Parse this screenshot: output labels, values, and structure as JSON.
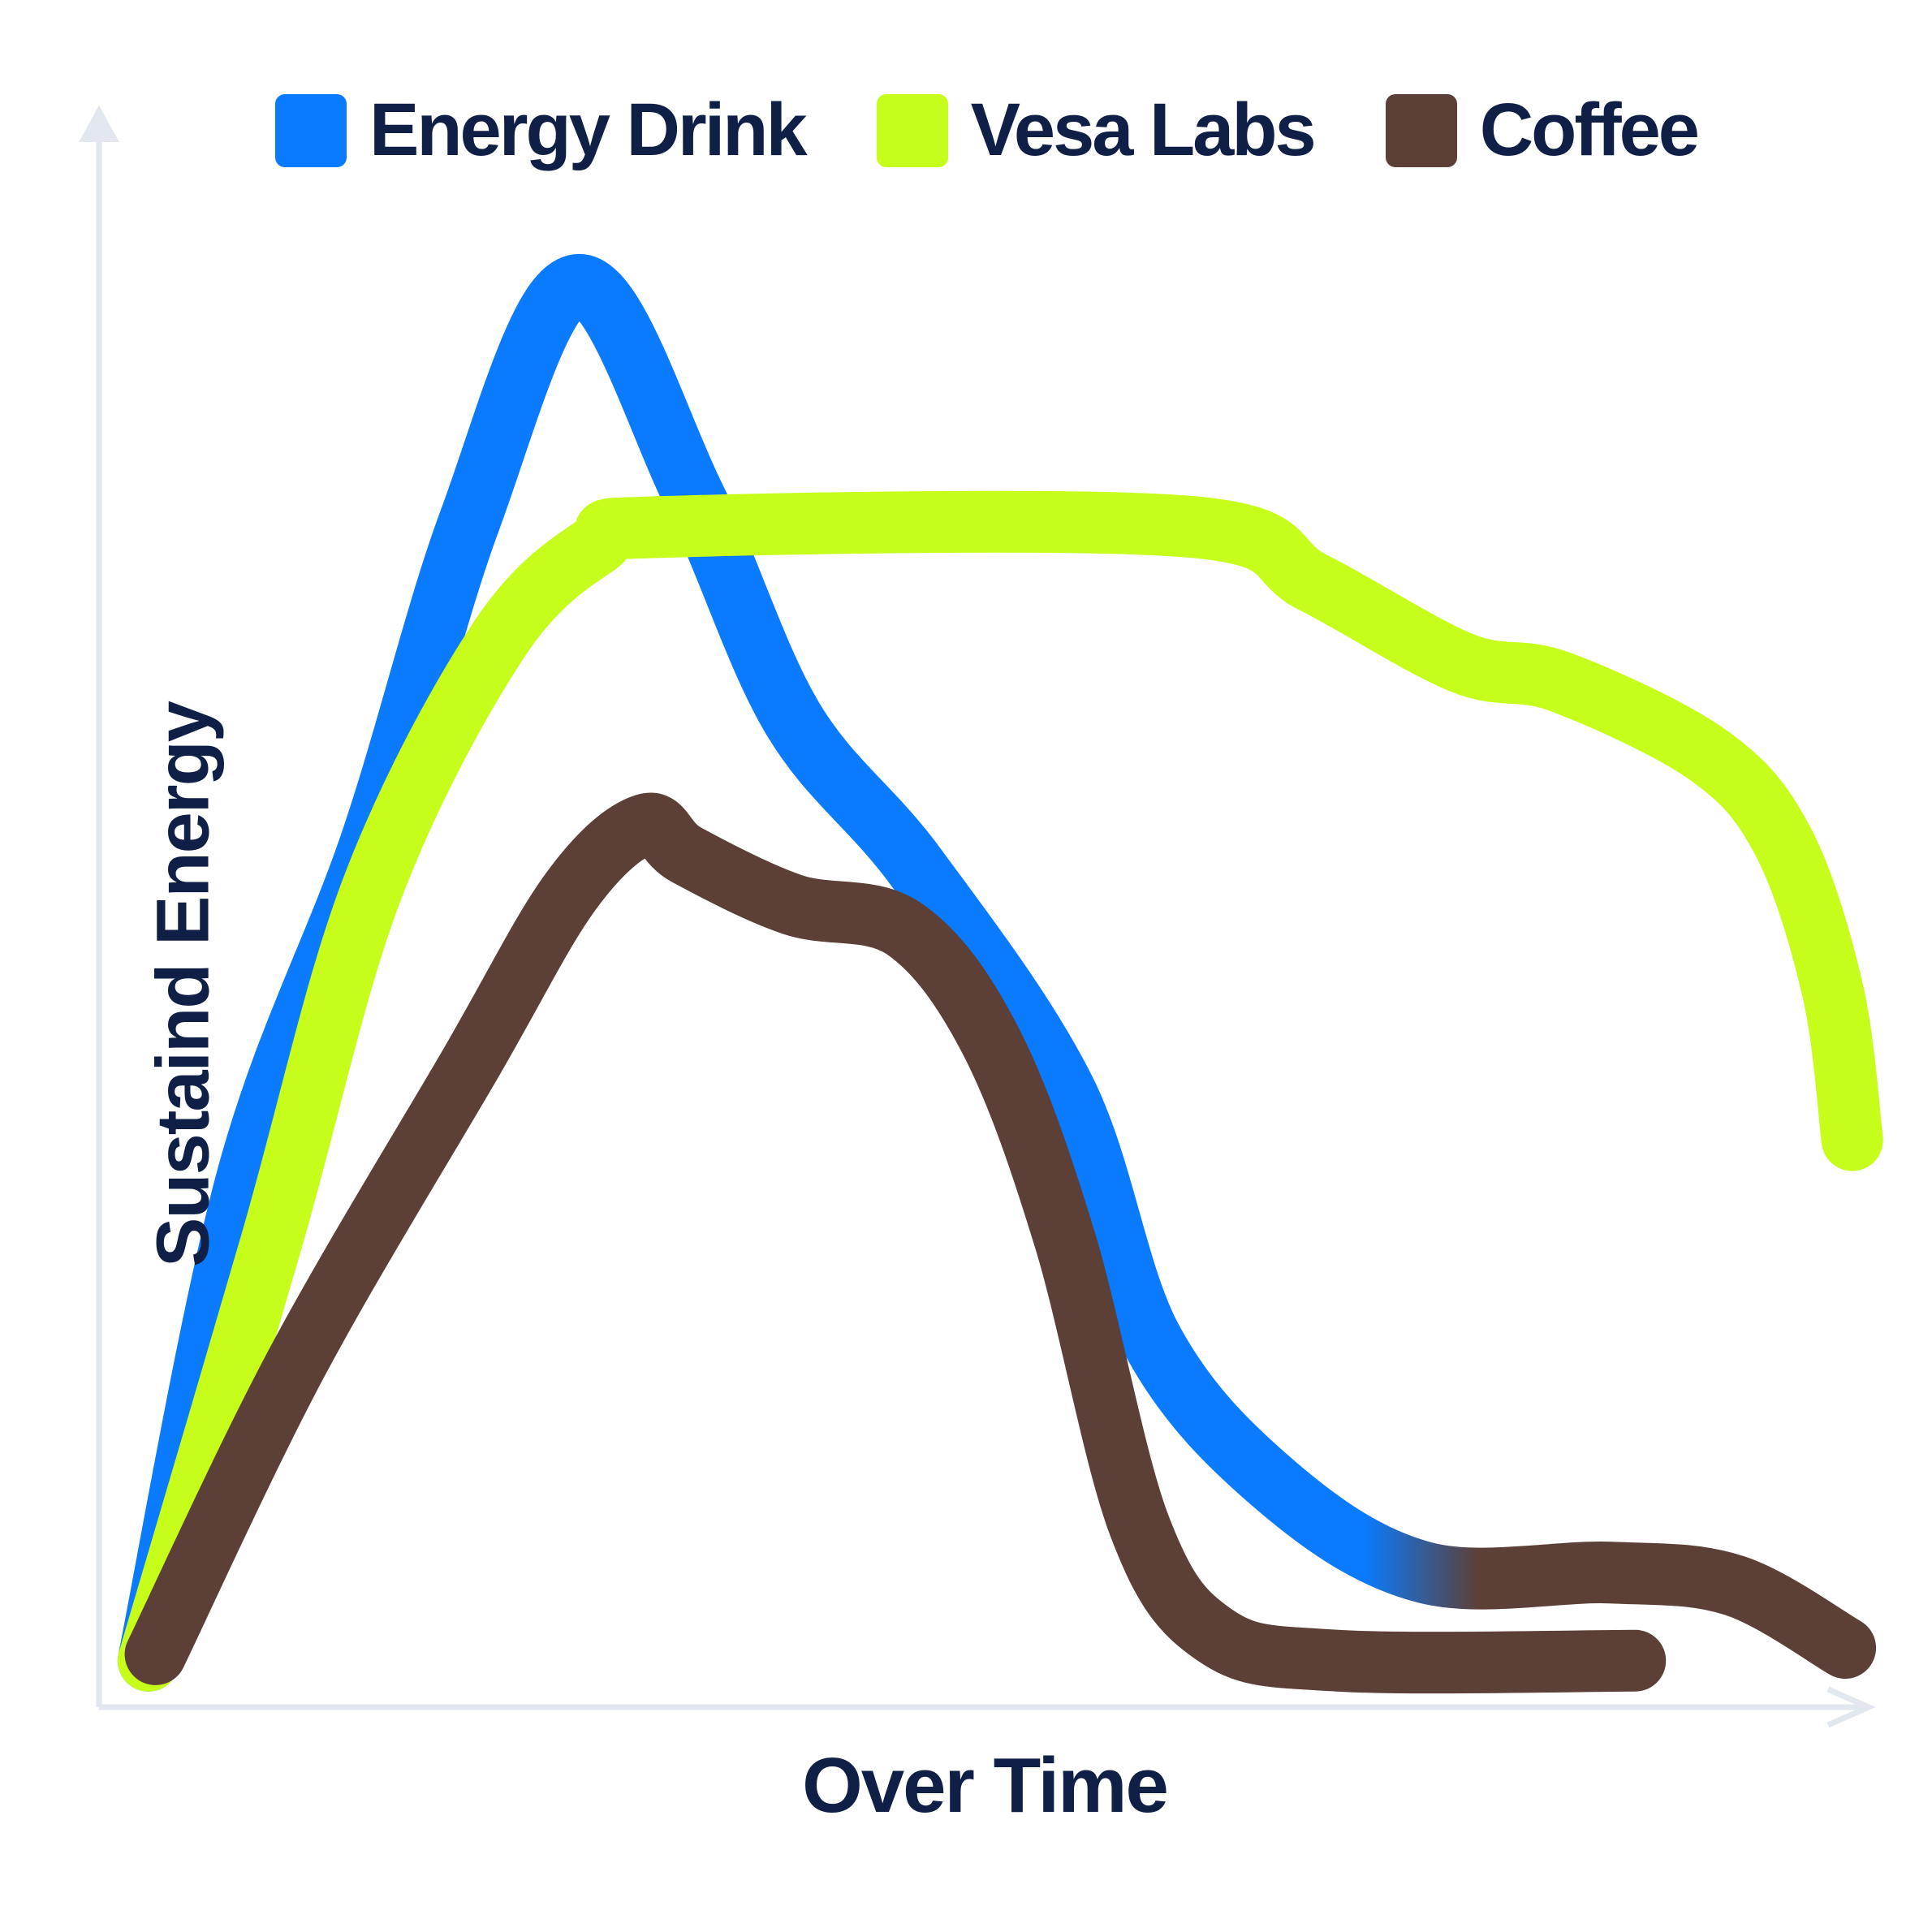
{
  "chart_data": {
    "type": "line",
    "title": "",
    "xlabel": "Over Time",
    "ylabel": "Sustaind Energy",
    "xlim": [
      0,
      100
    ],
    "ylim": [
      0,
      100
    ],
    "grid": false,
    "legend_position": "top",
    "series": [
      {
        "name": "Energy Drink",
        "color": "#0a7bff",
        "tail_color": "#5c4037",
        "x": [
          2.8,
          8.4,
          15.4,
          21,
          27.1,
          33.7,
          39.3,
          46.3,
          54.7,
          59.6,
          66.7,
          75.1,
          85.6,
          92.6,
          98.9
        ],
        "y": [
          2.9,
          33.1,
          54,
          74.1,
          88.8,
          75.6,
          61.7,
          52.4,
          38.5,
          23,
          13.8,
          8.4,
          8.4,
          7.6,
          3.7
        ]
      },
      {
        "name": "Vesa Labs",
        "color": "#c6fd1a",
        "x": [
          2.8,
          9.8,
          15.4,
          22.5,
          28.1,
          32.3,
          61.8,
          68.8,
          77.2,
          82.8,
          91.2,
          95.4,
          98.2,
          99.3
        ],
        "y": [
          2.9,
          29.2,
          50.9,
          66.4,
          72.5,
          73.7,
          73.7,
          70.2,
          65.2,
          64,
          59.4,
          54,
          44.7,
          35.4
        ]
      },
      {
        "name": "Coffee",
        "color": "#5c4037",
        "x": [
          3.2,
          11.2,
          21,
          26.7,
          30.9,
          33.3,
          39.3,
          45.6,
          50.5,
          54.7,
          58.9,
          63.2,
          70.2,
          87
        ],
        "y": [
          3.3,
          21.5,
          40.1,
          50.9,
          55.1,
          53.2,
          50.1,
          48.6,
          41.6,
          29.2,
          11.4,
          4.5,
          2.9,
          2.9
        ]
      }
    ]
  },
  "legend": [
    {
      "label": "Energy Drink",
      "color": "#0a7bff"
    },
    {
      "label": "Vesa Labs",
      "color": "#c6fd1a"
    },
    {
      "label": "Coffee",
      "color": "#5c4037"
    }
  ],
  "axis_color": "#e1e6ef",
  "text_color": "#0f1f45"
}
